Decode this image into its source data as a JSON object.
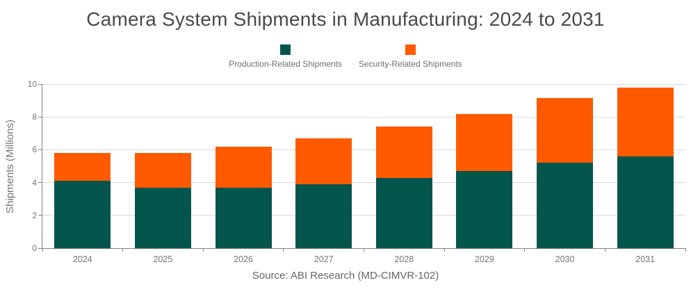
{
  "title": "Camera System Shipments in Manufacturing: 2024 to 2031",
  "source": "Source: ABI Research (MD-CIMVR-102)",
  "colors": {
    "production": "#04564D",
    "security": "#FF5A00",
    "gridline": "#D9D9D9",
    "axis": "#808080"
  },
  "chart_data": {
    "type": "bar",
    "stacked": true,
    "title": "Camera System Shipments in Manufacturing: 2024 to 2031",
    "xlabel": "",
    "ylabel": "Shipments (Millions)",
    "categories": [
      "2024",
      "2025",
      "2026",
      "2027",
      "2028",
      "2029",
      "2030",
      "2031"
    ],
    "series": [
      {
        "key": "production",
        "name": "Production-Related Shipments",
        "color": "#04564D",
        "values": [
          4.1,
          3.7,
          3.7,
          3.9,
          4.3,
          4.7,
          5.2,
          5.6
        ]
      },
      {
        "key": "security",
        "name": "Security-Related Shipments",
        "color": "#FF5A00",
        "values": [
          1.7,
          2.1,
          2.5,
          2.8,
          3.1,
          3.5,
          3.95,
          4.2
        ]
      }
    ],
    "totals": [
      5.8,
      5.8,
      6.2,
      6.7,
      7.4,
      8.2,
      9.15,
      9.8
    ],
    "ylim": [
      0,
      10
    ],
    "yticks": [
      0,
      2,
      4,
      6,
      8,
      10
    ],
    "grid": "horizontal",
    "legend_position": "top"
  }
}
